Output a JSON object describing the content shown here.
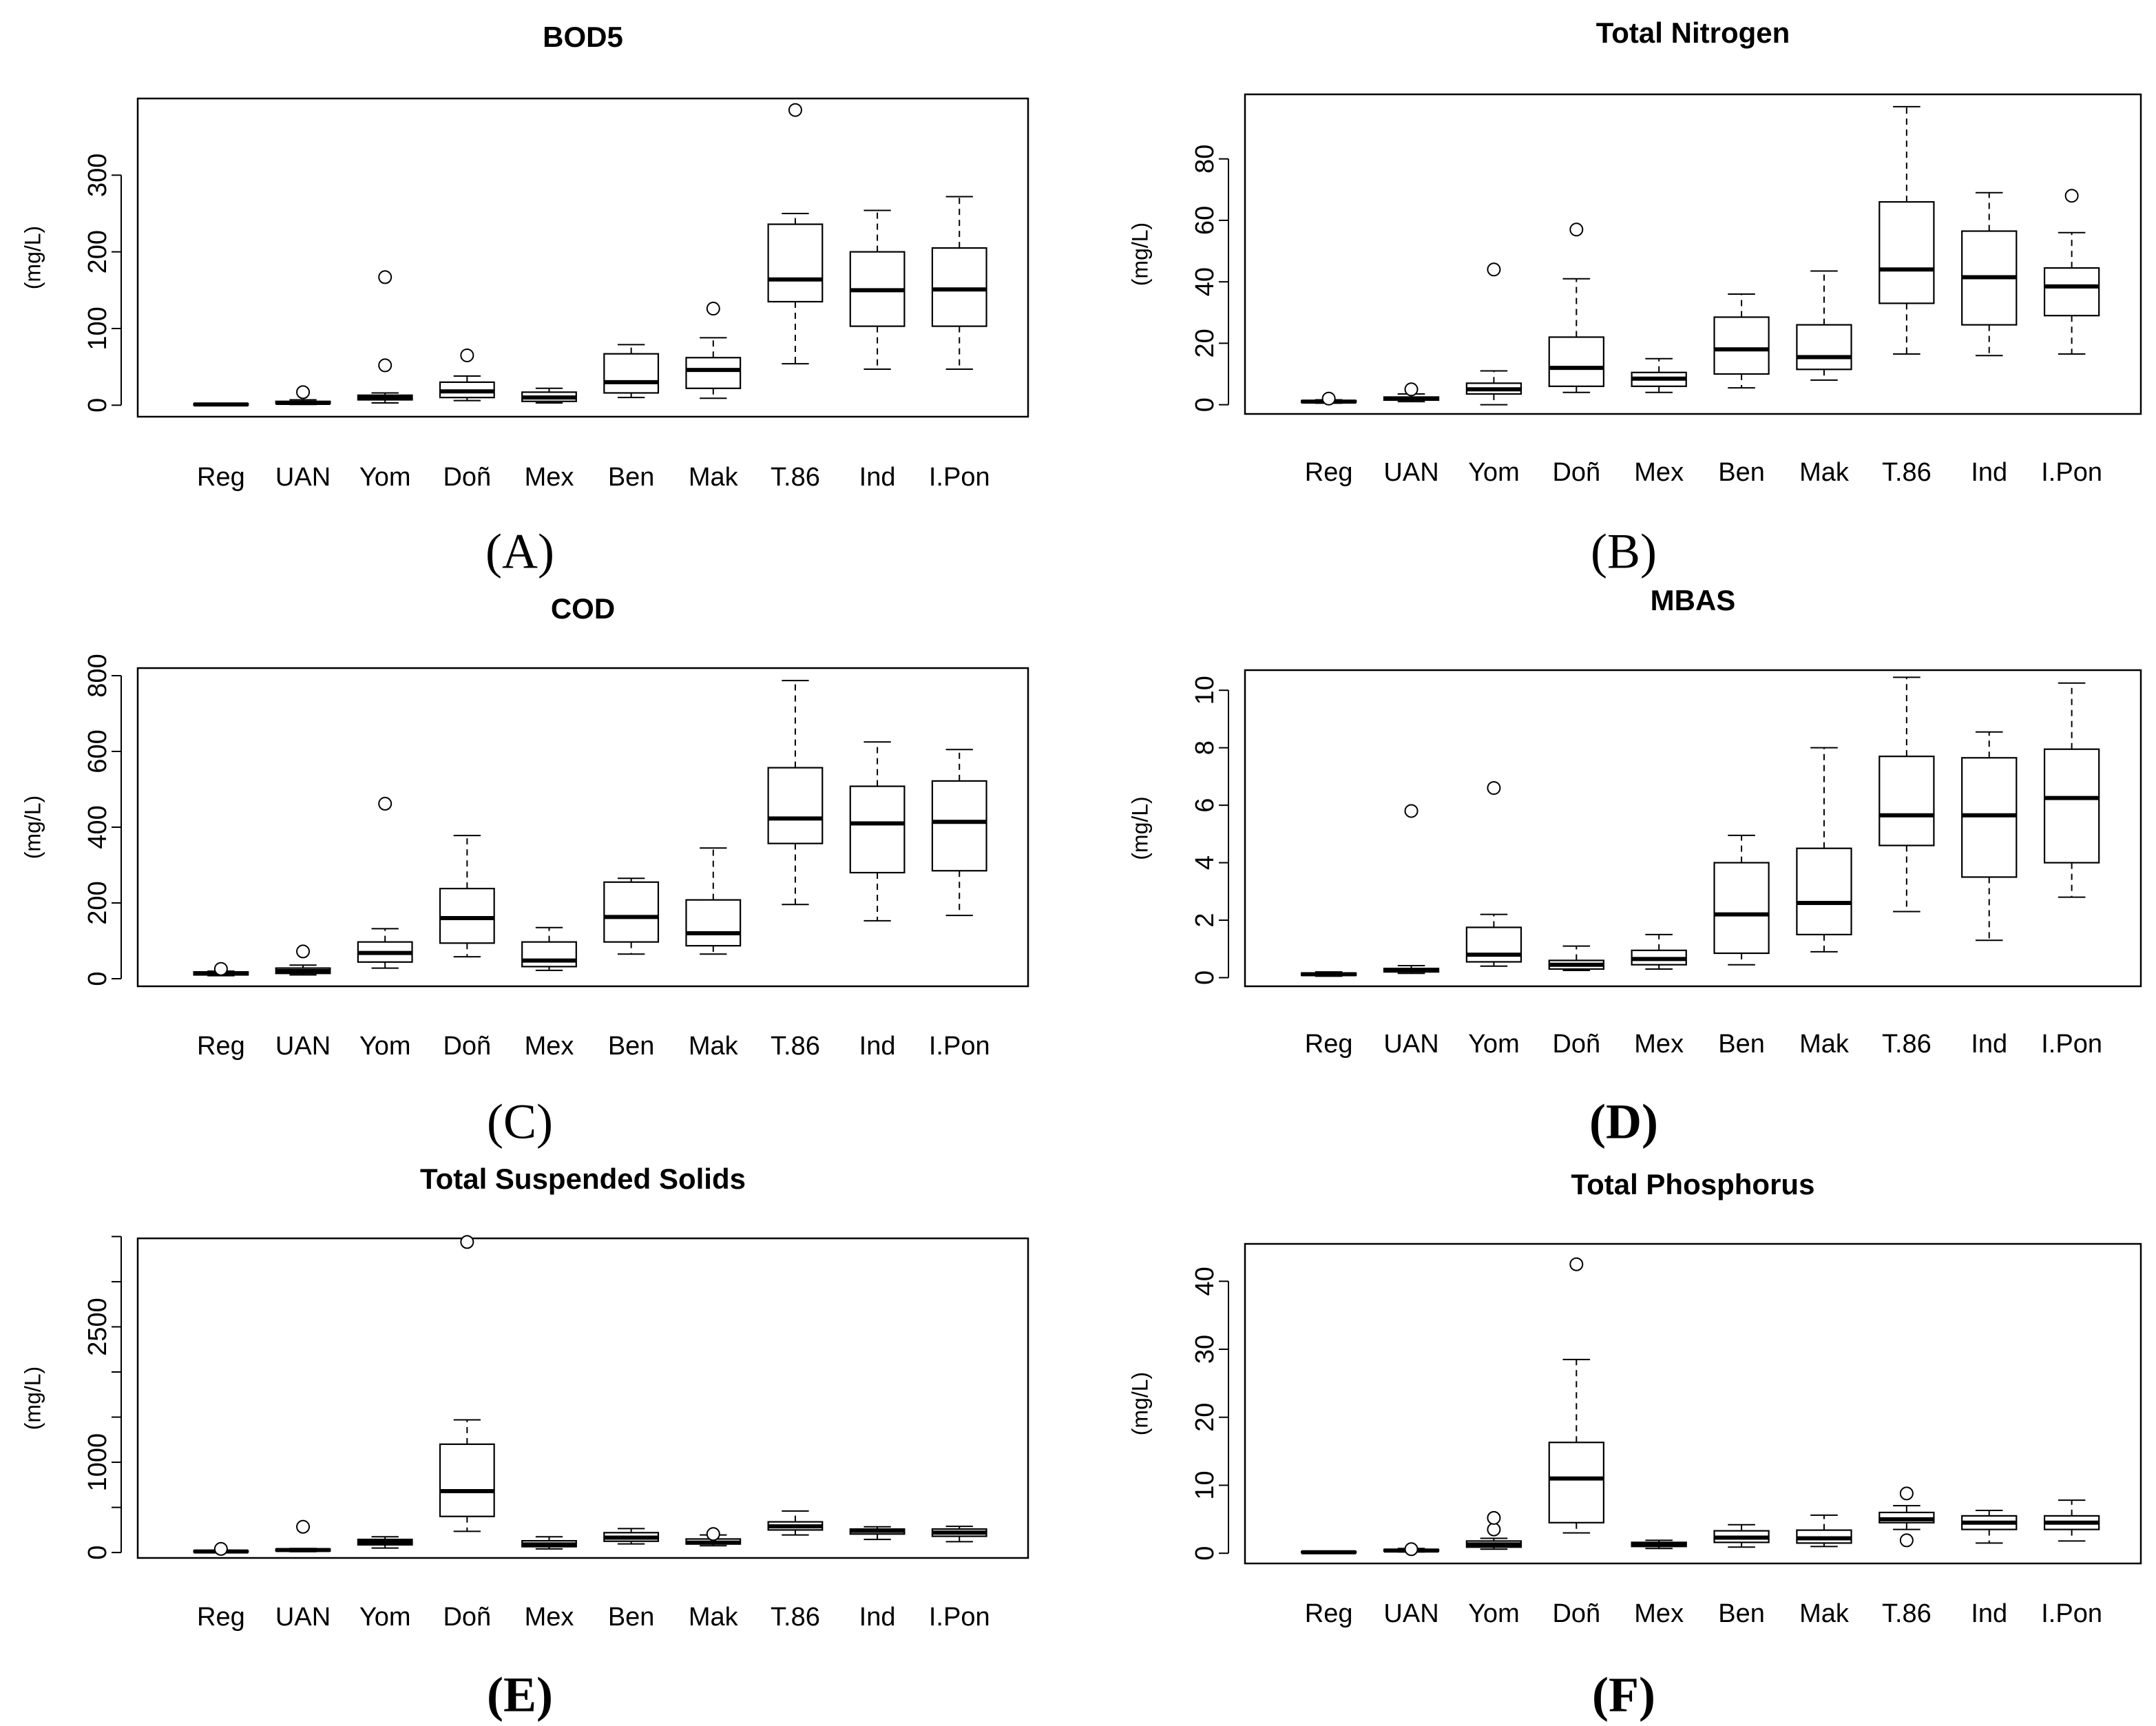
{
  "figure": {
    "background": "#ffffff",
    "ink": "#000000"
  },
  "chart_data": [
    {
      "type": "boxplot",
      "id": "A",
      "caption": "(A)",
      "caption_bold": false,
      "title": "BOD5",
      "ylabel": "(mg/L)",
      "ylim": [
        -15,
        400
      ],
      "yticks": [
        0,
        100,
        200,
        300
      ],
      "ytick_labels": [
        "0",
        "100",
        "200",
        "300"
      ],
      "categories": [
        "Reg",
        "UAN",
        "Yom",
        "Doñ",
        "Mex",
        "Ben",
        "Mak",
        "T.86",
        "Ind",
        "I.Pon"
      ],
      "boxes": [
        {
          "whislo": 0,
          "q1": 0,
          "med": 1,
          "q3": 2,
          "whishi": 2,
          "fliers": []
        },
        {
          "whislo": 1,
          "q1": 2,
          "med": 3,
          "q3": 5,
          "whishi": 7,
          "fliers": [
            17
          ]
        },
        {
          "whislo": 3,
          "q1": 7,
          "med": 10,
          "q3": 13,
          "whishi": 16,
          "fliers": [
            52,
            167
          ]
        },
        {
          "whislo": 6,
          "q1": 10,
          "med": 18,
          "q3": 30,
          "whishi": 38,
          "fliers": [
            65
          ]
        },
        {
          "whislo": 3,
          "q1": 5,
          "med": 10,
          "q3": 17,
          "whishi": 22,
          "fliers": []
        },
        {
          "whislo": 10,
          "q1": 16,
          "med": 30,
          "q3": 67,
          "whishi": 79,
          "fliers": []
        },
        {
          "whislo": 9,
          "q1": 22,
          "med": 46,
          "q3": 62,
          "whishi": 88,
          "fliers": [
            126
          ]
        },
        {
          "whislo": 54,
          "q1": 135,
          "med": 164,
          "q3": 236,
          "whishi": 250,
          "fliers": [
            385
          ]
        },
        {
          "whislo": 47,
          "q1": 103,
          "med": 150,
          "q3": 200,
          "whishi": 254,
          "fliers": []
        },
        {
          "whislo": 47,
          "q1": 103,
          "med": 151,
          "q3": 205,
          "whishi": 272,
          "fliers": []
        }
      ]
    },
    {
      "type": "boxplot",
      "id": "B",
      "caption": "(B)",
      "caption_bold": false,
      "title": "Total Nitrogen",
      "ylabel": "(mg/L)",
      "ylim": [
        -3,
        101
      ],
      "yticks": [
        0,
        20,
        40,
        60,
        80
      ],
      "ytick_labels": [
        "0",
        "20",
        "40",
        "60",
        "80"
      ],
      "categories": [
        "Reg",
        "UAN",
        "Yom",
        "Doñ",
        "Mex",
        "Ben",
        "Mak",
        "T.86",
        "Ind",
        "I.Pon"
      ],
      "boxes": [
        {
          "whislo": 0.5,
          "q1": 0.8,
          "med": 1,
          "q3": 1.3,
          "whishi": 1.6,
          "fliers": [
            2
          ]
        },
        {
          "whislo": 1,
          "q1": 1.5,
          "med": 2,
          "q3": 2.5,
          "whishi": 3.5,
          "fliers": [
            5
          ]
        },
        {
          "whislo": 0,
          "q1": 3.5,
          "med": 5,
          "q3": 7,
          "whishi": 11,
          "fliers": [
            44
          ]
        },
        {
          "whislo": 4,
          "q1": 6,
          "med": 12,
          "q3": 22,
          "whishi": 41,
          "fliers": [
            57
          ]
        },
        {
          "whislo": 4,
          "q1": 6,
          "med": 8.5,
          "q3": 10.5,
          "whishi": 15,
          "fliers": []
        },
        {
          "whislo": 5.5,
          "q1": 10,
          "med": 18,
          "q3": 28.5,
          "whishi": 36,
          "fliers": []
        },
        {
          "whislo": 8,
          "q1": 11.5,
          "med": 15.5,
          "q3": 26,
          "whishi": 43.5,
          "fliers": []
        },
        {
          "whislo": 16.5,
          "q1": 33,
          "med": 44,
          "q3": 66,
          "whishi": 97,
          "fliers": []
        },
        {
          "whislo": 16,
          "q1": 26,
          "med": 41.5,
          "q3": 56.5,
          "whishi": 69,
          "fliers": []
        },
        {
          "whislo": 16.5,
          "q1": 29,
          "med": 38.5,
          "q3": 44.5,
          "whishi": 56,
          "fliers": [
            68
          ]
        }
      ]
    },
    {
      "type": "boxplot",
      "id": "C",
      "caption": "(C)",
      "caption_bold": false,
      "title": "COD",
      "ylabel": "(mg/L)",
      "ylim": [
        -20,
        820
      ],
      "yticks": [
        0,
        200,
        400,
        600,
        800
      ],
      "ytick_labels": [
        "0",
        "200",
        "400",
        "600",
        "800"
      ],
      "categories": [
        "Reg",
        "UAN",
        "Yom",
        "Doñ",
        "Mex",
        "Ben",
        "Mak",
        "T.86",
        "Ind",
        "I.Pon"
      ],
      "boxes": [
        {
          "whislo": 8,
          "q1": 10,
          "med": 14,
          "q3": 18,
          "whishi": 20,
          "fliers": [
            26
          ]
        },
        {
          "whislo": 10,
          "q1": 14,
          "med": 20,
          "q3": 28,
          "whishi": 36,
          "fliers": [
            72
          ]
        },
        {
          "whislo": 28,
          "q1": 44,
          "med": 68,
          "q3": 97,
          "whishi": 132,
          "fliers": [
            462
          ]
        },
        {
          "whislo": 58,
          "q1": 94,
          "med": 160,
          "q3": 238,
          "whishi": 378,
          "fliers": []
        },
        {
          "whislo": 22,
          "q1": 32,
          "med": 48,
          "q3": 97,
          "whishi": 135,
          "fliers": []
        },
        {
          "whislo": 65,
          "q1": 97,
          "med": 163,
          "q3": 255,
          "whishi": 265,
          "fliers": []
        },
        {
          "whislo": 65,
          "q1": 87,
          "med": 120,
          "q3": 208,
          "whishi": 345,
          "fliers": []
        },
        {
          "whislo": 196,
          "q1": 357,
          "med": 423,
          "q3": 557,
          "whishi": 787,
          "fliers": []
        },
        {
          "whislo": 153,
          "q1": 280,
          "med": 410,
          "q3": 508,
          "whishi": 625,
          "fliers": []
        },
        {
          "whislo": 167,
          "q1": 285,
          "med": 414,
          "q3": 522,
          "whishi": 605,
          "fliers": []
        }
      ]
    },
    {
      "type": "boxplot",
      "id": "D",
      "caption": "(D)",
      "caption_bold": true,
      "title": "MBAS",
      "ylabel": "(mg/L)",
      "ylim": [
        -0.3,
        10.7
      ],
      "yticks": [
        0,
        2,
        4,
        6,
        8,
        10
      ],
      "ytick_labels": [
        "0",
        "2",
        "4",
        "6",
        "8",
        "10"
      ],
      "categories": [
        "Reg",
        "UAN",
        "Yom",
        "Doñ",
        "Mex",
        "Ben",
        "Mak",
        "T.86",
        "Ind",
        "I.Pon"
      ],
      "boxes": [
        {
          "whislo": 0.05,
          "q1": 0.08,
          "med": 0.12,
          "q3": 0.16,
          "whishi": 0.2,
          "fliers": []
        },
        {
          "whislo": 0.15,
          "q1": 0.2,
          "med": 0.27,
          "q3": 0.32,
          "whishi": 0.42,
          "fliers": [
            5.8
          ]
        },
        {
          "whislo": 0.4,
          "q1": 0.55,
          "med": 0.8,
          "q3": 1.75,
          "whishi": 2.2,
          "fliers": [
            6.6
          ]
        },
        {
          "whislo": 0.25,
          "q1": 0.3,
          "med": 0.45,
          "q3": 0.6,
          "whishi": 1.1,
          "fliers": []
        },
        {
          "whislo": 0.3,
          "q1": 0.45,
          "med": 0.65,
          "q3": 0.95,
          "whishi": 1.5,
          "fliers": []
        },
        {
          "whislo": 0.45,
          "q1": 0.85,
          "med": 2.2,
          "q3": 4.0,
          "whishi": 4.95,
          "fliers": []
        },
        {
          "whislo": 0.9,
          "q1": 1.5,
          "med": 2.6,
          "q3": 4.5,
          "whishi": 8.0,
          "fliers": []
        },
        {
          "whislo": 2.3,
          "q1": 4.6,
          "med": 5.65,
          "q3": 7.7,
          "whishi": 10.45,
          "fliers": []
        },
        {
          "whislo": 1.3,
          "q1": 3.5,
          "med": 5.65,
          "q3": 7.65,
          "whishi": 8.55,
          "fliers": []
        },
        {
          "whislo": 2.8,
          "q1": 4.0,
          "med": 6.25,
          "q3": 7.95,
          "whishi": 10.25,
          "fliers": []
        }
      ]
    },
    {
      "type": "boxplot",
      "id": "E",
      "caption": "(E)",
      "caption_bold": true,
      "title": "Total Suspended Solids",
      "ylabel": "(mg/L)",
      "ylim": [
        -60,
        3480
      ],
      "yticks": [
        0,
        1000,
        2500
      ],
      "ytick_labels": [
        "0",
        "1000",
        "2500"
      ],
      "minor_yticks": [
        500,
        1500,
        2000,
        3000,
        3500
      ],
      "categories": [
        "Reg",
        "UAN",
        "Yom",
        "Doñ",
        "Mex",
        "Ben",
        "Mak",
        "T.86",
        "Ind",
        "I.Pon"
      ],
      "boxes": [
        {
          "whislo": 0,
          "q1": 5,
          "med": 12,
          "q3": 20,
          "whishi": 25,
          "fliers": [
            40
          ]
        },
        {
          "whislo": 10,
          "q1": 18,
          "med": 28,
          "q3": 38,
          "whishi": 45,
          "fliers": [
            285
          ]
        },
        {
          "whislo": 50,
          "q1": 85,
          "med": 115,
          "q3": 145,
          "whishi": 175,
          "fliers": []
        },
        {
          "whislo": 235,
          "q1": 400,
          "med": 680,
          "q3": 1200,
          "whishi": 1470,
          "fliers": [
            3440
          ]
        },
        {
          "whislo": 40,
          "q1": 65,
          "med": 90,
          "q3": 130,
          "whishi": 175,
          "fliers": []
        },
        {
          "whislo": 95,
          "q1": 125,
          "med": 165,
          "q3": 220,
          "whishi": 265,
          "fliers": []
        },
        {
          "whislo": 75,
          "q1": 95,
          "med": 110,
          "q3": 150,
          "whishi": 195,
          "fliers": [
            205
          ]
        },
        {
          "whislo": 195,
          "q1": 250,
          "med": 290,
          "q3": 340,
          "whishi": 460,
          "fliers": []
        },
        {
          "whislo": 145,
          "q1": 205,
          "med": 240,
          "q3": 260,
          "whishi": 285,
          "fliers": []
        },
        {
          "whislo": 120,
          "q1": 180,
          "med": 220,
          "q3": 260,
          "whishi": 290,
          "fliers": []
        }
      ]
    },
    {
      "type": "boxplot",
      "id": "F",
      "caption": "(F)",
      "caption_bold": true,
      "title": "Total Phosphorus",
      "ylabel": "(mg/L)",
      "ylim": [
        -1.5,
        45.5
      ],
      "yticks": [
        0,
        10,
        20,
        30,
        40
      ],
      "ytick_labels": [
        "0",
        "10",
        "20",
        "30",
        "40"
      ],
      "categories": [
        "Reg",
        "UAN",
        "Yom",
        "Doñ",
        "Mex",
        "Ben",
        "Mak",
        "T.86",
        "Ind",
        "I.Pon"
      ],
      "boxes": [
        {
          "whislo": 0.05,
          "q1": 0.1,
          "med": 0.15,
          "q3": 0.22,
          "whishi": 0.3,
          "fliers": []
        },
        {
          "whislo": 0.2,
          "q1": 0.3,
          "med": 0.4,
          "q3": 0.55,
          "whishi": 0.7,
          "fliers": [
            0.6
          ]
        },
        {
          "whislo": 0.6,
          "q1": 0.9,
          "med": 1.3,
          "q3": 1.8,
          "whishi": 2.2,
          "fliers": [
            3.5,
            5.2
          ]
        },
        {
          "whislo": 3,
          "q1": 4.5,
          "med": 11,
          "q3": 16.3,
          "whishi": 28.5,
          "fliers": [
            42.5
          ]
        },
        {
          "whislo": 0.7,
          "q1": 1.0,
          "med": 1.3,
          "q3": 1.6,
          "whishi": 1.9,
          "fliers": []
        },
        {
          "whislo": 0.9,
          "q1": 1.6,
          "med": 2.3,
          "q3": 3.3,
          "whishi": 4.2,
          "fliers": []
        },
        {
          "whislo": 1.0,
          "q1": 1.5,
          "med": 2.2,
          "q3": 3.4,
          "whishi": 5.6,
          "fliers": []
        },
        {
          "whislo": 3.5,
          "q1": 4.5,
          "med": 5.0,
          "q3": 6.0,
          "whishi": 7.0,
          "fliers": [
            1.9,
            8.8
          ]
        },
        {
          "whislo": 1.5,
          "q1": 3.5,
          "med": 4.5,
          "q3": 5.5,
          "whishi": 6.3,
          "fliers": []
        },
        {
          "whislo": 1.8,
          "q1": 3.5,
          "med": 4.5,
          "q3": 5.5,
          "whishi": 7.8,
          "fliers": []
        }
      ]
    }
  ]
}
